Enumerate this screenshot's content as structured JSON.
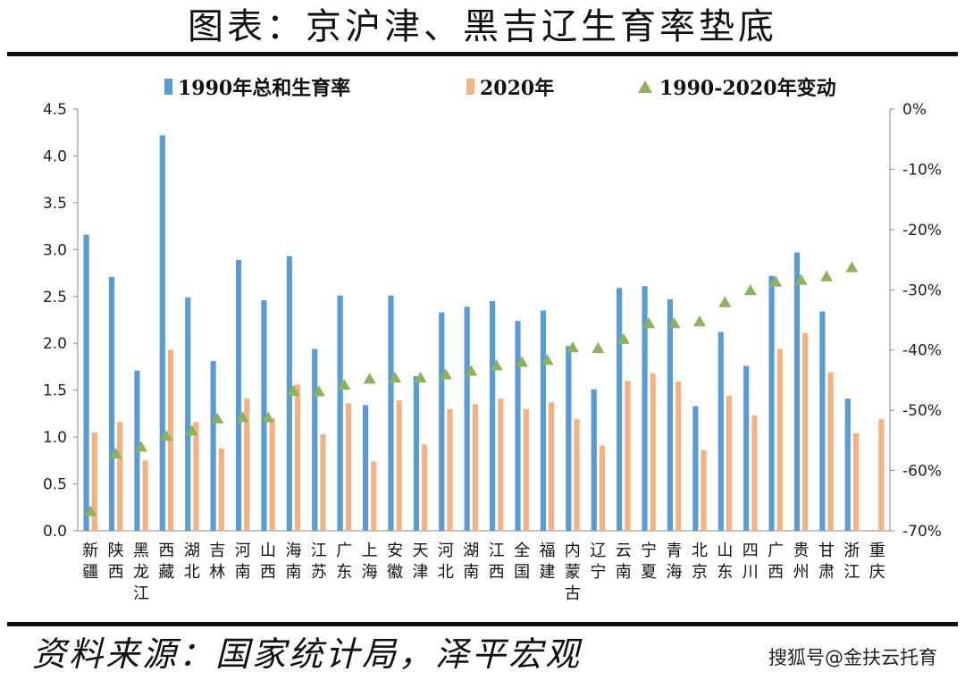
{
  "title": "图表：京沪津、黑吉辽生育率垫底",
  "source": "资料来源：国家统计局，泽平宏观",
  "watermark": "搜狐号@金扶云托育",
  "colors": {
    "series1990": "#5b9bd5",
    "series2020": "#f4b183",
    "change": "#8db35a",
    "rule": "#111111"
  },
  "chart_data": {
    "type": "bar",
    "categories": [
      "新疆",
      "陕西",
      "黑龙江",
      "西藏",
      "湖北",
      "吉林",
      "河南",
      "山西",
      "海南",
      "江苏",
      "广东",
      "上海",
      "安徽",
      "天津",
      "河北",
      "湖南",
      "江西",
      "全国",
      "福建",
      "内蒙古",
      "辽宁",
      "云南",
      "宁夏",
      "青海",
      "北京",
      "山东",
      "四川",
      "广西",
      "贵州",
      "甘肃",
      "浙江",
      "重庆"
    ],
    "series": [
      {
        "name": "1990年总和生育率",
        "axis": "left",
        "values": [
          3.16,
          2.71,
          1.71,
          4.22,
          2.49,
          1.81,
          2.89,
          2.46,
          2.93,
          1.94,
          2.51,
          1.34,
          2.51,
          1.65,
          2.33,
          2.39,
          2.45,
          2.24,
          2.35,
          1.97,
          1.51,
          2.59,
          2.61,
          2.47,
          1.33,
          2.12,
          1.76,
          2.72,
          2.97,
          2.34,
          1.41,
          null
        ]
      },
      {
        "name": "2020年",
        "axis": "left",
        "values": [
          1.05,
          1.16,
          0.75,
          1.93,
          1.16,
          0.88,
          1.41,
          1.2,
          1.56,
          1.03,
          1.36,
          0.74,
          1.39,
          0.92,
          1.3,
          1.35,
          1.41,
          1.3,
          1.37,
          1.19,
          0.91,
          1.6,
          1.68,
          1.59,
          0.86,
          1.44,
          1.23,
          1.94,
          2.11,
          1.69,
          1.04,
          1.19
        ]
      },
      {
        "name": "1990-2020年变动",
        "axis": "right",
        "type": "scatter",
        "values": [
          -66.8,
          -57.2,
          -56.1,
          -54.3,
          -53.4,
          -51.4,
          -51.2,
          -51.2,
          -46.8,
          -46.9,
          -45.8,
          -44.8,
          -44.6,
          -44.6,
          -44.1,
          -43.5,
          -42.6,
          -42.0,
          -41.7,
          -39.6,
          -39.7,
          -38.2,
          -35.6,
          -35.6,
          -35.3,
          -32.1,
          -30.1,
          -28.7,
          -28.4,
          -27.8,
          -26.3,
          null
        ]
      }
    ],
    "y_left": {
      "ylim": [
        0,
        4.5
      ],
      "ticks": [
        "0.0",
        "0.5",
        "1.0",
        "1.5",
        "2.0",
        "2.5",
        "3.0",
        "3.5",
        "4.0",
        "4.5"
      ]
    },
    "y_right": {
      "ylim": [
        -70,
        0
      ],
      "ticks": [
        "0%",
        "-10%",
        "-20%",
        "-30%",
        "-40%",
        "-50%",
        "-60%",
        "-70%"
      ]
    },
    "legend": {
      "placement": "top"
    },
    "grid": false
  }
}
